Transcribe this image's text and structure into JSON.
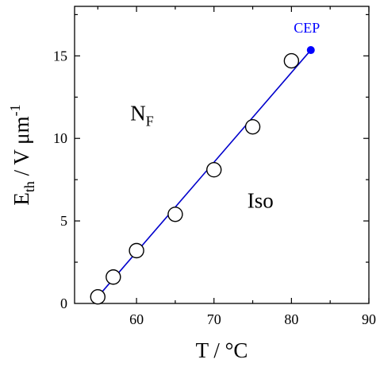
{
  "chart_data": {
    "type": "scatter",
    "xlim": [
      52,
      90
    ],
    "ylim": [
      0,
      18
    ],
    "xticks": [
      "60",
      "70",
      "80",
      "90"
    ],
    "yticks": [
      "0",
      "5",
      "10",
      "15"
    ],
    "xlabel": "T / °C",
    "ylabel": {
      "base": "E",
      "subscript": "th",
      "rest": " / V μm",
      "superscript": "-1"
    },
    "series": [
      {
        "marker": "open-circle",
        "points": [
          {
            "x": 55,
            "y": 0.4
          },
          {
            "x": 57,
            "y": 1.6
          },
          {
            "x": 60,
            "y": 3.2
          },
          {
            "x": 65,
            "y": 5.4
          },
          {
            "x": 70,
            "y": 8.1
          },
          {
            "x": 75,
            "y": 10.7
          },
          {
            "x": 80,
            "y": 14.7
          }
        ]
      }
    ],
    "fit_line": {
      "color": "#0000cc",
      "from": {
        "x": 55,
        "y": 0.4
      },
      "to": {
        "x": 82.5,
        "y": 15.35
      }
    },
    "critical_point": {
      "label": "CEP",
      "x": 82.5,
      "y": 15.35,
      "color": "#0000ff"
    },
    "annotations": [
      {
        "id": "nf",
        "text": "N",
        "subscript": "F",
        "x": 59.2,
        "y": 11.1
      },
      {
        "id": "iso",
        "text": "Iso",
        "x": 74.3,
        "y": 5.8
      }
    ],
    "grid": false,
    "legend": "none"
  }
}
